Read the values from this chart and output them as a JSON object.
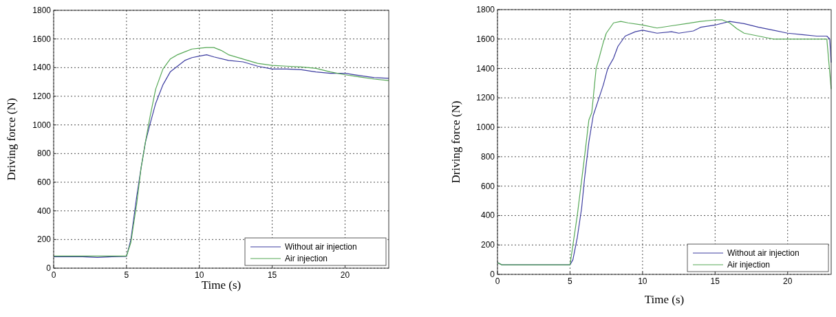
{
  "chart_data": [
    {
      "type": "line",
      "xlabel": "Time (s)",
      "ylabel": "Driving force (N)",
      "xlim": [
        0,
        23
      ],
      "ylim": [
        0,
        1800
      ],
      "xticks": [
        0,
        5,
        10,
        15,
        20
      ],
      "yticks": [
        0,
        200,
        400,
        600,
        800,
        1000,
        1200,
        1400,
        1600,
        1800
      ],
      "grid": true,
      "legend": "bottom right",
      "line_style": "solid",
      "series": [
        {
          "name": "Without air injection",
          "color": "#3c3ca0",
          "x": [
            0,
            2,
            3,
            4,
            5,
            5.3,
            5.7,
            6,
            6.3,
            6.6,
            7,
            7.5,
            8,
            8.5,
            9,
            9.5,
            10,
            10.5,
            11,
            12,
            13,
            14,
            15,
            16,
            17,
            18,
            19,
            20,
            21,
            22,
            23
          ],
          "values": [
            80,
            80,
            75,
            80,
            82,
            200,
            500,
            700,
            880,
            1000,
            1150,
            1280,
            1370,
            1410,
            1450,
            1470,
            1480,
            1490,
            1475,
            1450,
            1440,
            1410,
            1390,
            1390,
            1385,
            1370,
            1360,
            1360,
            1345,
            1330,
            1325
          ]
        },
        {
          "name": "Air injection",
          "color": "#55a855",
          "x": [
            0,
            5,
            5.3,
            5.7,
            6,
            6.3,
            6.6,
            7,
            7.5,
            8,
            8.5,
            9,
            9.5,
            10,
            10.5,
            11,
            11.5,
            12,
            13,
            14,
            15,
            16,
            17,
            18,
            19,
            20,
            21,
            22,
            23
          ],
          "values": [
            85,
            85,
            180,
            450,
            700,
            880,
            1050,
            1250,
            1390,
            1460,
            1490,
            1510,
            1530,
            1535,
            1540,
            1540,
            1520,
            1490,
            1460,
            1430,
            1415,
            1410,
            1405,
            1395,
            1370,
            1350,
            1335,
            1320,
            1310
          ]
        }
      ]
    },
    {
      "type": "line",
      "xlabel": "Time (s)",
      "ylabel": "Driving force (N)",
      "xlim": [
        0,
        23
      ],
      "ylim": [
        0,
        1800
      ],
      "xticks": [
        0,
        5,
        10,
        15,
        20
      ],
      "yticks": [
        0,
        200,
        400,
        600,
        800,
        1000,
        1200,
        1400,
        1600,
        1800
      ],
      "grid": true,
      "legend": "bottom right",
      "line_style": "solid",
      "series": [
        {
          "name": "Without air injection",
          "color": "#3c3ca0",
          "x": [
            0,
            0.3,
            5,
            5.2,
            5.5,
            5.8,
            6,
            6.3,
            6.6,
            7,
            7.3,
            7.6,
            8,
            8.3,
            8.8,
            9.5,
            10,
            11,
            12,
            12.5,
            13.5,
            14,
            15,
            16,
            17,
            18,
            19,
            20,
            21,
            22,
            22.7,
            22.9,
            23
          ],
          "values": [
            80,
            65,
            65,
            100,
            250,
            450,
            650,
            900,
            1080,
            1200,
            1290,
            1400,
            1470,
            1550,
            1620,
            1650,
            1660,
            1640,
            1650,
            1640,
            1655,
            1680,
            1695,
            1720,
            1705,
            1680,
            1660,
            1640,
            1630,
            1620,
            1620,
            1600,
            1440
          ]
        },
        {
          "name": "Air injection",
          "color": "#55a855",
          "x": [
            0,
            0.3,
            5,
            5.2,
            5.5,
            6,
            6.3,
            6.5,
            6.8,
            7,
            7.3,
            7.5,
            8,
            8.5,
            9,
            10,
            11,
            12,
            13,
            14,
            15,
            15.5,
            16,
            16.5,
            17,
            18,
            19,
            20,
            21,
            22,
            22.7,
            23
          ],
          "values": [
            80,
            65,
            65,
            200,
            400,
            800,
            1050,
            1100,
            1400,
            1470,
            1580,
            1640,
            1710,
            1720,
            1710,
            1695,
            1675,
            1690,
            1705,
            1720,
            1730,
            1730,
            1710,
            1670,
            1640,
            1620,
            1600,
            1600,
            1600,
            1600,
            1600,
            1260
          ]
        }
      ]
    }
  ]
}
